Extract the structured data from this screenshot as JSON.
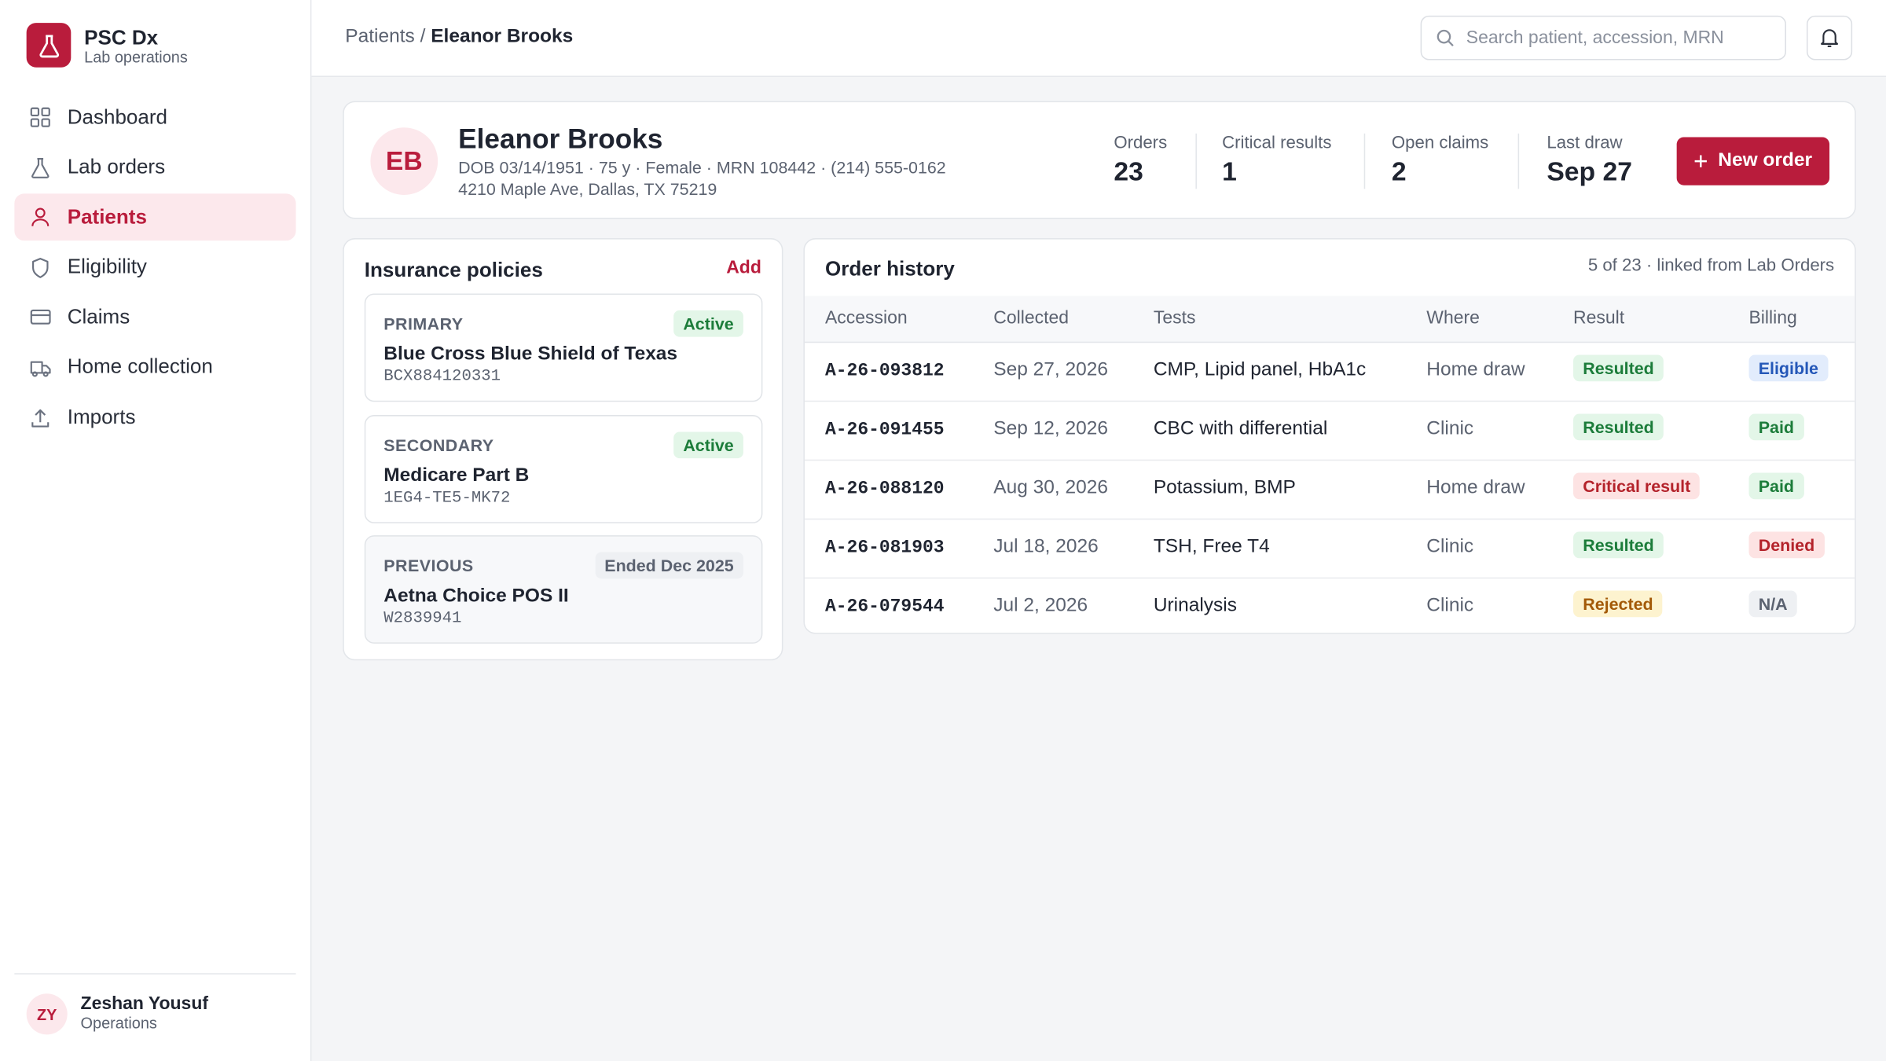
{
  "sidebar": {
    "brand": {
      "name": "PSC Dx",
      "subtitle": "Lab operations"
    },
    "nav": [
      {
        "label": "Dashboard",
        "icon": "grid",
        "active": false
      },
      {
        "label": "Lab orders",
        "icon": "flask",
        "active": false
      },
      {
        "label": "Patients",
        "icon": "user",
        "active": true
      },
      {
        "label": "Eligibility",
        "icon": "shield",
        "active": false
      },
      {
        "label": "Claims",
        "icon": "card",
        "active": false
      },
      {
        "label": "Home collection",
        "icon": "truck",
        "active": false
      },
      {
        "label": "Imports",
        "icon": "upload",
        "active": false
      }
    ],
    "user": {
      "initials": "ZY",
      "name": "Zeshan Yousuf",
      "role": "Operations"
    }
  },
  "header": {
    "breadcrumb": {
      "parent": "Patients",
      "separator": "/",
      "current": "Eleanor Brooks"
    },
    "search_placeholder": "Search patient, accession, MRN"
  },
  "patient": {
    "initials": "EB",
    "name": "Eleanor Brooks",
    "details": "DOB 03/14/1951 · 75 y · Female · MRN 108442 · (214) 555-0162",
    "address": "4210 Maple Ave, Dallas, TX 75219",
    "stats": [
      {
        "label": "Orders",
        "value": 23
      },
      {
        "label": "Critical results",
        "value": 1
      },
      {
        "label": "Open claims",
        "value": 2
      },
      {
        "label": "Last draw",
        "value": "Sep 27"
      }
    ],
    "action": "New order"
  },
  "insurance": {
    "title": "Insurance policies",
    "action": "Add",
    "policies": [
      {
        "rank": "PRIMARY",
        "status": "Active",
        "status_color": "green",
        "plan": "Blue Cross Blue Shield of Texas",
        "member_id": "BCX884120331"
      },
      {
        "rank": "SECONDARY",
        "status": "Active",
        "status_color": "green",
        "plan": "Medicare Part B",
        "member_id": "1EG4-TE5-MK72"
      },
      {
        "rank": "PREVIOUS",
        "status": "Ended Dec 2025",
        "status_color": "gray",
        "plan": "Aetna Choice POS II",
        "member_id": "W2839941"
      }
    ]
  },
  "orders": {
    "title": "Order history",
    "note": "5 of 23 · linked from Lab Orders",
    "columns": [
      "Accession",
      "Collected",
      "Tests",
      "Where",
      "Result",
      "Billing"
    ],
    "rows": [
      {
        "accession": "A-26-093812",
        "collected": "Sep 27, 2026",
        "tests": "CMP, Lipid panel, HbA1c",
        "where": "Home draw",
        "result": {
          "label": "Resulted",
          "color": "green"
        },
        "billing": {
          "label": "Eligible",
          "color": "blue"
        }
      },
      {
        "accession": "A-26-091455",
        "collected": "Sep 12, 2026",
        "tests": "CBC with differential",
        "where": "Clinic",
        "result": {
          "label": "Resulted",
          "color": "green"
        },
        "billing": {
          "label": "Paid",
          "color": "green"
        }
      },
      {
        "accession": "A-26-088120",
        "collected": "Aug 30, 2026",
        "tests": "Potassium, BMP",
        "where": "Home draw",
        "result": {
          "label": "Critical result",
          "color": "red"
        },
        "billing": {
          "label": "Paid",
          "color": "green"
        }
      },
      {
        "accession": "A-26-081903",
        "collected": "Jul 18, 2026",
        "tests": "TSH, Free T4",
        "where": "Clinic",
        "result": {
          "label": "Resulted",
          "color": "green"
        },
        "billing": {
          "label": "Denied",
          "color": "red"
        }
      },
      {
        "accession": "A-26-079544",
        "collected": "Jul 2, 2026",
        "tests": "Urinalysis",
        "where": "Clinic",
        "result": {
          "label": "Rejected",
          "color": "amber"
        },
        "billing": {
          "label": "N/A",
          "color": "gray"
        }
      }
    ]
  }
}
